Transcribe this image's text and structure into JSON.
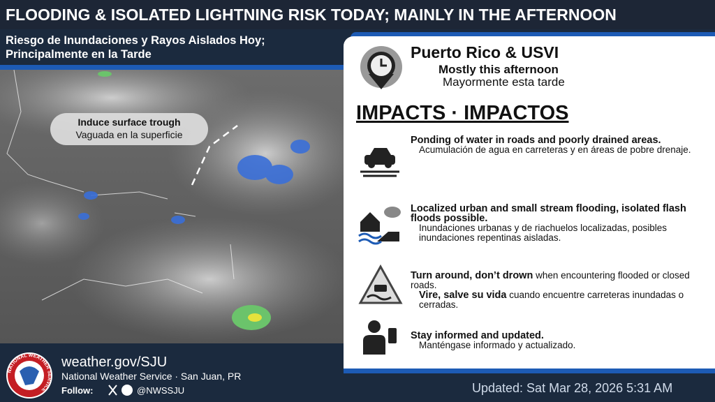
{
  "header": {
    "title": "FLOODING & ISOLATED LIGHTNING RISK TODAY; MAINLY IN THE AFTERNOON",
    "subtitle": [
      "Riesgo de Inundaciones y Rayos Aislados Hoy;",
      "Principalmente en la Tarde"
    ]
  },
  "map": {
    "annotation": {
      "en": "Induce surface trough",
      "es": "Vaguada en la superficie"
    }
  },
  "panel": {
    "location": "Puerto Rico & USVI",
    "timing_en": "Mostly this afternoon",
    "timing_es": "Mayormente esta tarde",
    "heading": "IMPACTS · IMPACTOS",
    "impacts": [
      {
        "en": "Ponding of water in roads and poorly drained areas.",
        "es": "Acumulación de agua en carreteras y en áreas de pobre drenaje."
      },
      {
        "en": "Localized urban and small stream flooding, isolated flash floods possible.",
        "es": "Inundaciones urbanas y de riachuelos localizadas, posibles inundaciones repentinas aisladas."
      },
      {
        "en_bold": "Turn around, don’t drown",
        "en": " when encountering flooded or closed roads.",
        "es_bold": "Vire, salve su vida",
        "es": " cuando encuentre carreteras inundadas o cerradas."
      },
      {
        "en": "Stay informed and updated.",
        "es": "Manténgase informado y actualizado."
      }
    ]
  },
  "footer": {
    "logo": "NATIONAL WEATHER SERVICE",
    "website": "weather.gov/SJU",
    "office": "National Weather Service · San Juan, PR",
    "follow": "Follow:",
    "handle": "@NWSSJU",
    "updated": "Updated: Sat Mar 28, 2026 5:31 AM"
  }
}
